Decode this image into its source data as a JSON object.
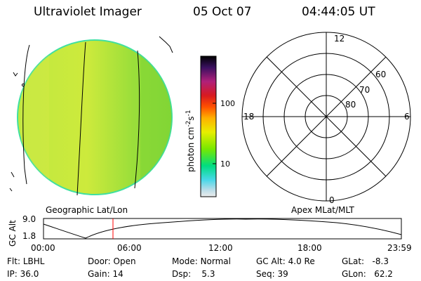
{
  "header": {
    "instrument": "Ultraviolet Imager",
    "date": "05 Oct 07",
    "time": "04:44:05 UT"
  },
  "colorbar": {
    "unit_label": "photon cm",
    "unit_sup1": "-2",
    "unit_s": "s",
    "unit_sup2": "-1",
    "tick_100": "100",
    "tick_10": "10",
    "colors": [
      "#000000",
      "#7a1a6a",
      "#c8202a",
      "#ff4a00",
      "#ffb000",
      "#e8ee00",
      "#78e800",
      "#00dd80",
      "#48d8e8",
      "#b8dce8",
      "#ececec"
    ]
  },
  "left_panel": {
    "caption": "Geographic Lat/Lon",
    "disk_color": "#b8e63a",
    "edge_color": "#40e0a0"
  },
  "right_panel": {
    "caption": "Apex MLat/MLT",
    "mlt_labels": {
      "top": "12",
      "left": "18",
      "right": "6",
      "bottom": "0"
    },
    "mlat_labels": [
      "60",
      "70",
      "80"
    ]
  },
  "altitude_plot": {
    "ylabel": "GC Alt",
    "ytick_top": "9.0",
    "ytick_bottom": "1.8",
    "xticks": [
      "00:00",
      "06:00",
      "12:00",
      "18:00",
      "23:59"
    ],
    "marker_time": "04:44",
    "marker_color": "#ff0000"
  },
  "status": {
    "flt_label": "Flt:",
    "flt_value": "LBHL",
    "ip_label": "IP:",
    "ip_value": "36.0",
    "door_label": "Door:",
    "door_value": "Open",
    "gain_label": "Gain:",
    "gain_value": "14",
    "mode_label": "Mode:",
    "mode_value": "Normal",
    "dsp_label": "Dsp:",
    "dsp_value": "5.3",
    "gcalt_label": "GC Alt:",
    "gcalt_value": "4.0 Re",
    "seq_label": "Seq:",
    "seq_value": "39",
    "glat_label": "GLat:",
    "glat_value": "-8.3",
    "glon_label": "GLon:",
    "glon_value": "62.2"
  }
}
